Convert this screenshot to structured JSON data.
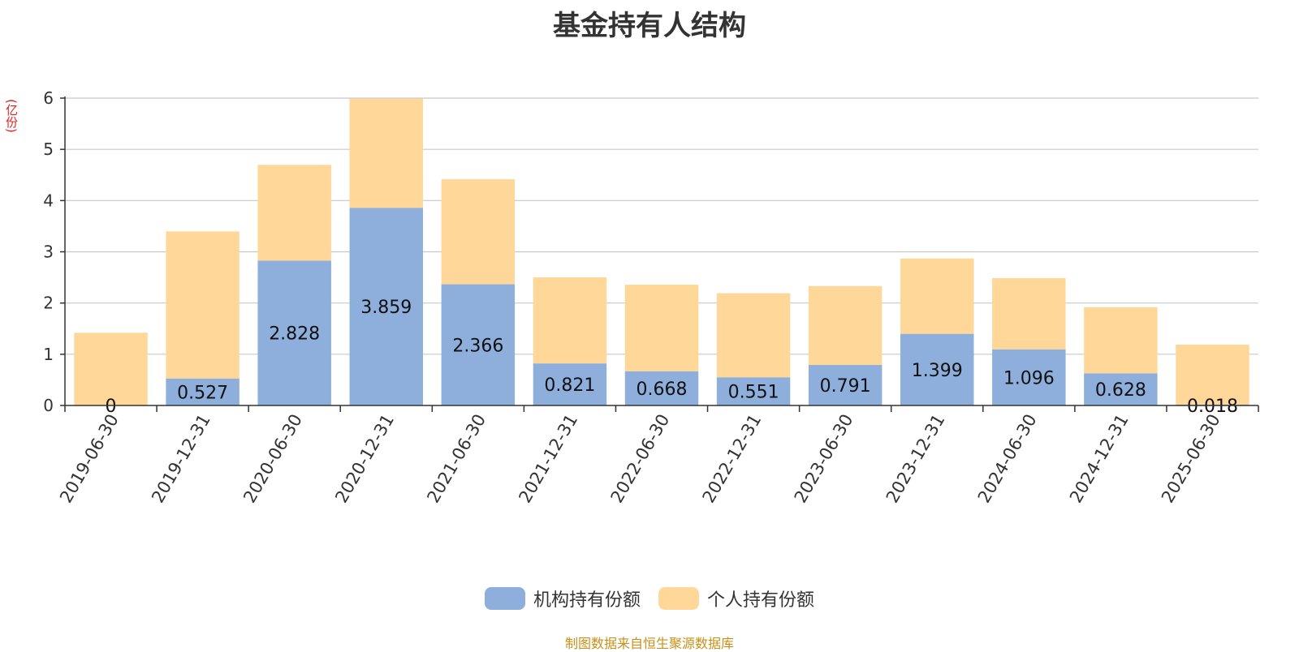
{
  "chart_data": {
    "type": "bar",
    "stacked": true,
    "title": "基金持有人结构",
    "unit_label": "(亿份)",
    "categories": [
      "2019-06-30",
      "2019-12-31",
      "2020-06-30",
      "2020-12-31",
      "2021-06-30",
      "2021-12-31",
      "2022-06-30",
      "2022-12-31",
      "2023-06-30",
      "2023-12-31",
      "2024-06-30",
      "2024-12-31",
      "2025-06-30"
    ],
    "series": [
      {
        "name": "机构持有份额",
        "color": "#8eaedc",
        "values": [
          0,
          0.527,
          2.828,
          3.859,
          2.366,
          0.821,
          0.668,
          0.551,
          0.791,
          1.399,
          1.096,
          0.628,
          0.018
        ],
        "labels": [
          "0",
          "0.527",
          "2.828",
          "3.859",
          "2.366",
          "0.821",
          "0.668",
          "0.551",
          "0.791",
          "1.399",
          "1.096",
          "0.628",
          "0.018"
        ]
      },
      {
        "name": "个人持有份额",
        "color": "#ffd899",
        "values": [
          1.42,
          2.87,
          1.87,
          2.13,
          2.05,
          1.68,
          1.69,
          1.64,
          1.54,
          1.47,
          1.39,
          1.29,
          1.17
        ]
      }
    ],
    "ylim": [
      0,
      6
    ],
    "yticks": [
      0,
      1,
      2,
      3,
      4,
      5,
      6
    ],
    "grid": true,
    "legend_position": "bottom"
  },
  "source": {
    "text": "制图数据来自恒生聚源数据库",
    "color": "#c8901a"
  }
}
